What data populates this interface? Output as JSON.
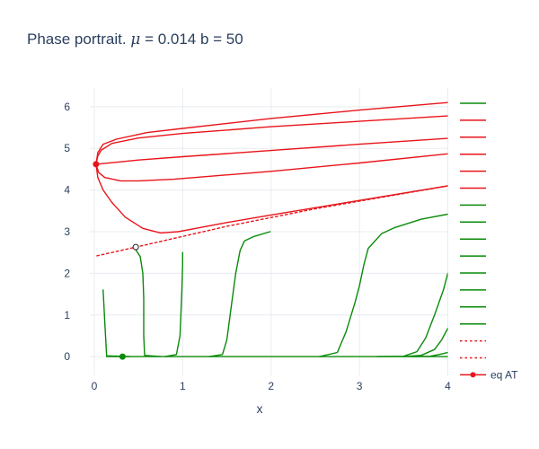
{
  "title": {
    "prefix": "Phase portrait. ",
    "mu_symbol": "μ",
    "suffix": " = 0.014 b = 50"
  },
  "colors": {
    "red": "#e8141a",
    "green": "#0a8a0a",
    "grid": "#e8ecf1",
    "text": "#2a3f5f"
  },
  "chart_data": {
    "type": "line",
    "title": "Phase portrait. μ = 0.014 b = 50",
    "xlabel": "x",
    "ylabel": "",
    "xlim": [
      -0.05,
      4.0
    ],
    "ylim": [
      -0.45,
      6.45
    ],
    "xticks": [
      0,
      1,
      2,
      3,
      4
    ],
    "yticks": [
      0,
      1,
      2,
      3,
      4,
      5,
      6
    ],
    "grid": true,
    "legend_placement": "right",
    "series": [
      {
        "color": "red",
        "dash": "solid",
        "points": [
          [
            0.02,
            4.62
          ],
          [
            0.5,
            4.72
          ],
          [
            1,
            4.8
          ],
          [
            2,
            4.95
          ],
          [
            3,
            5.1
          ],
          [
            4,
            5.24
          ]
        ]
      },
      {
        "color": "red",
        "dash": "solid",
        "points": [
          [
            0.02,
            4.62
          ],
          [
            0.04,
            4.82
          ],
          [
            0.08,
            4.96
          ],
          [
            0.2,
            5.12
          ],
          [
            0.5,
            5.25
          ],
          [
            1,
            5.36
          ],
          [
            2,
            5.52
          ],
          [
            3,
            5.65
          ],
          [
            4,
            5.78
          ]
        ]
      },
      {
        "color": "red",
        "dash": "solid",
        "points": [
          [
            0.02,
            4.62
          ],
          [
            0.04,
            4.9
          ],
          [
            0.1,
            5.1
          ],
          [
            0.25,
            5.22
          ],
          [
            0.6,
            5.38
          ],
          [
            1,
            5.48
          ],
          [
            2,
            5.72
          ],
          [
            3,
            5.92
          ],
          [
            4,
            6.1
          ]
        ]
      },
      {
        "color": "red",
        "dash": "solid",
        "points": [
          [
            0.02,
            4.62
          ],
          [
            0.05,
            4.42
          ],
          [
            0.12,
            4.3
          ],
          [
            0.3,
            4.22
          ],
          [
            0.5,
            4.22
          ],
          [
            0.9,
            4.26
          ],
          [
            2,
            4.45
          ],
          [
            3,
            4.65
          ],
          [
            4,
            4.87
          ]
        ]
      },
      {
        "color": "red",
        "dash": "solid",
        "points": [
          [
            0.02,
            4.62
          ],
          [
            0.04,
            4.3
          ],
          [
            0.1,
            4.0
          ],
          [
            0.2,
            3.7
          ],
          [
            0.35,
            3.35
          ],
          [
            0.55,
            3.08
          ],
          [
            0.75,
            2.97
          ],
          [
            0.95,
            3.0
          ],
          [
            1.5,
            3.22
          ],
          [
            2,
            3.4
          ],
          [
            3,
            3.75
          ],
          [
            4,
            4.1
          ]
        ]
      },
      {
        "color": "green",
        "dash": "solid",
        "points": [
          [
            0.1,
            1.6
          ],
          [
            0.12,
            0.8
          ],
          [
            0.14,
            0.02
          ],
          [
            0.4,
            0.0
          ]
        ]
      },
      {
        "color": "green",
        "dash": "solid",
        "points": [
          [
            0.46,
            2.6
          ],
          [
            0.52,
            2.4
          ],
          [
            0.55,
            2.0
          ],
          [
            0.56,
            1.4
          ],
          [
            0.56,
            0.5
          ],
          [
            0.57,
            0.03
          ],
          [
            0.75,
            0.0
          ]
        ]
      },
      {
        "color": "green",
        "dash": "solid",
        "points": [
          [
            1.0,
            2.5
          ],
          [
            1.0,
            2.2
          ],
          [
            0.99,
            1.5
          ],
          [
            0.97,
            0.5
          ],
          [
            0.93,
            0.05
          ],
          [
            0.8,
            0.0
          ]
        ]
      },
      {
        "color": "green",
        "dash": "solid",
        "points": [
          [
            1.99,
            3.0
          ],
          [
            1.8,
            2.88
          ],
          [
            1.7,
            2.78
          ],
          [
            1.65,
            2.55
          ],
          [
            1.6,
            2.0
          ],
          [
            1.55,
            1.2
          ],
          [
            1.5,
            0.4
          ],
          [
            1.45,
            0.05
          ],
          [
            1.3,
            0.0
          ]
        ]
      },
      {
        "color": "green",
        "dash": "solid",
        "points": [
          [
            4.0,
            3.42
          ],
          [
            3.7,
            3.3
          ],
          [
            3.4,
            3.1
          ],
          [
            3.25,
            2.95
          ],
          [
            3.1,
            2.6
          ],
          [
            3.05,
            2.2
          ],
          [
            3.0,
            1.7
          ],
          [
            2.95,
            1.3
          ],
          [
            2.85,
            0.6
          ],
          [
            2.75,
            0.1
          ],
          [
            2.55,
            0.0
          ]
        ]
      },
      {
        "color": "green",
        "dash": "solid",
        "points": [
          [
            4.0,
            2.0
          ],
          [
            3.95,
            1.6
          ],
          [
            3.85,
            1.0
          ],
          [
            3.75,
            0.45
          ],
          [
            3.65,
            0.12
          ],
          [
            3.5,
            0.01
          ],
          [
            3.2,
            0.0
          ]
        ]
      },
      {
        "color": "green",
        "dash": "solid",
        "points": [
          [
            4.0,
            0.68
          ],
          [
            3.93,
            0.4
          ],
          [
            3.85,
            0.17
          ],
          [
            3.7,
            0.03
          ],
          [
            3.5,
            0.0
          ]
        ]
      },
      {
        "color": "green",
        "dash": "solid",
        "points": [
          [
            4.0,
            0.1
          ],
          [
            3.9,
            0.05
          ],
          [
            3.8,
            0.01
          ],
          [
            3.6,
            0.0
          ]
        ]
      },
      {
        "color": "green",
        "dash": "solid",
        "points": [
          [
            0.14,
            0.0
          ],
          [
            4.0,
            0.0
          ]
        ]
      },
      {
        "color": "red",
        "dash": "dot",
        "points": [
          [
            0.03,
            2.42
          ],
          [
            0.47,
            2.63
          ],
          [
            1.5,
            3.13
          ],
          [
            2.5,
            3.55
          ],
          [
            4.0,
            4.1
          ]
        ]
      }
    ],
    "equilibria": [
      {
        "color": "red",
        "filled": true,
        "x": 0.02,
        "y": 4.62
      },
      {
        "color": "red",
        "filled": false,
        "x": 0.47,
        "y": 2.63
      },
      {
        "color": "green",
        "filled": true,
        "x": 0.32,
        "y": 0.0
      }
    ],
    "legend": [
      {
        "color": "green",
        "dash": "solid"
      },
      {
        "color": "red",
        "dash": "solid"
      },
      {
        "color": "red",
        "dash": "solid"
      },
      {
        "color": "red",
        "dash": "solid"
      },
      {
        "color": "red",
        "dash": "solid"
      },
      {
        "color": "red",
        "dash": "solid"
      },
      {
        "color": "green",
        "dash": "solid"
      },
      {
        "color": "green",
        "dash": "solid"
      },
      {
        "color": "green",
        "dash": "solid"
      },
      {
        "color": "green",
        "dash": "solid"
      },
      {
        "color": "green",
        "dash": "solid"
      },
      {
        "color": "green",
        "dash": "solid"
      },
      {
        "color": "green",
        "dash": "solid"
      },
      {
        "color": "green",
        "dash": "solid"
      },
      {
        "color": "red",
        "dash": "dot"
      },
      {
        "color": "red",
        "dash": "dot"
      },
      {
        "color": "red",
        "dash": "solid",
        "marker": true,
        "label": "eq AT"
      }
    ]
  }
}
